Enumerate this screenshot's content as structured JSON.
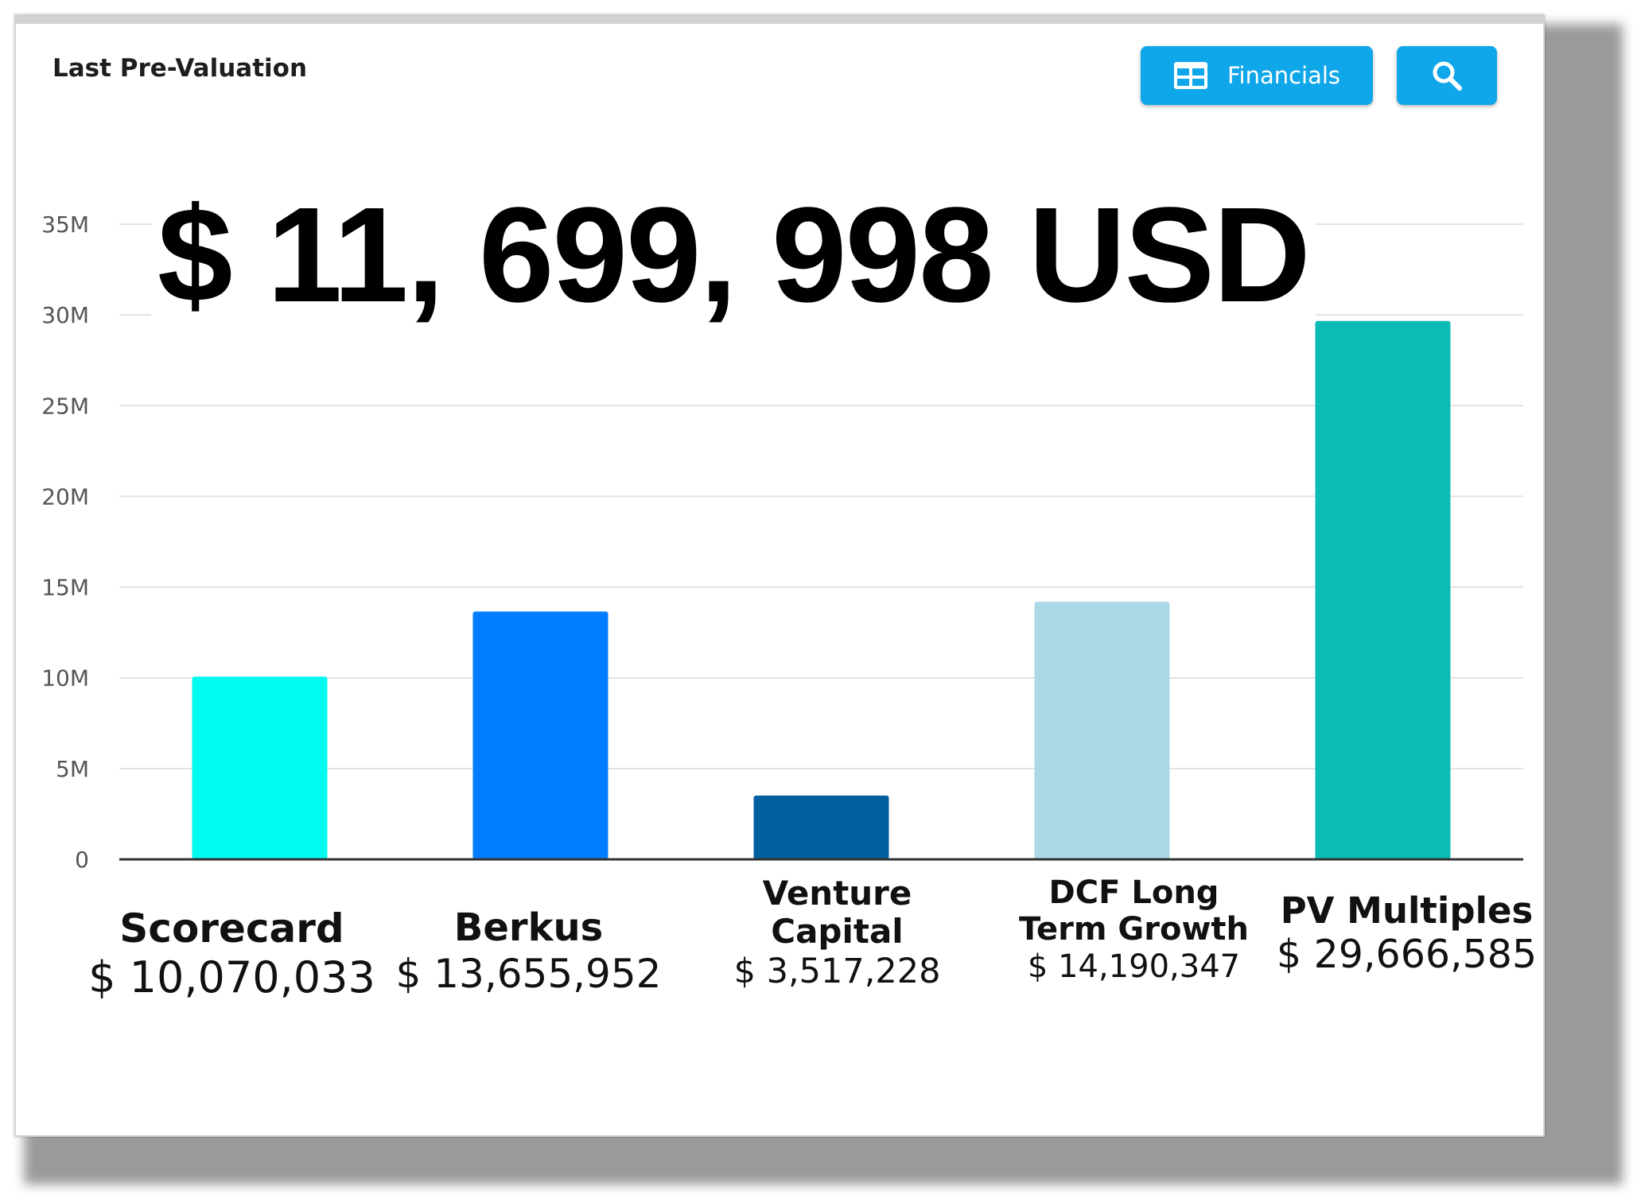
{
  "header": {
    "title": "Last Pre-Valuation",
    "financials_label": "Financials",
    "financials_icon": "table-icon",
    "search_icon": "search-icon",
    "accent_color": "#0fa7e9"
  },
  "headline_value": "$ 11, 699, 998 USD",
  "chart_data": {
    "type": "bar",
    "categories": [
      "Scorecard",
      "Berkus",
      "Venture Capital",
      "DCF Long Term Growth",
      "PV Multiples"
    ],
    "category_lines": [
      [
        "Scorecard"
      ],
      [
        "Berkus"
      ],
      [
        "Venture",
        "Capital"
      ],
      [
        "DCF Long",
        "Term Growth"
      ],
      [
        "PV Multiples"
      ]
    ],
    "values": [
      10070033,
      13655952,
      3517228,
      14190347,
      29666585
    ],
    "value_labels": [
      "$ 10,070,033",
      "$ 13,655,952",
      "$ 3,517,228",
      "$ 14,190,347",
      "$ 29,666,585"
    ],
    "colors": [
      "#00fbf0",
      "#007eff",
      "#005f9e",
      "#add8e6",
      "#0bbcb4"
    ],
    "y_ticks": [
      "0",
      "5M",
      "10M",
      "15M",
      "20M",
      "25M",
      "30M",
      "35M"
    ],
    "y_tick_values": [
      0,
      5000000,
      10000000,
      15000000,
      20000000,
      25000000,
      30000000,
      35000000
    ],
    "ylim": [
      0,
      35000000
    ],
    "grid": true,
    "legend": "none"
  }
}
